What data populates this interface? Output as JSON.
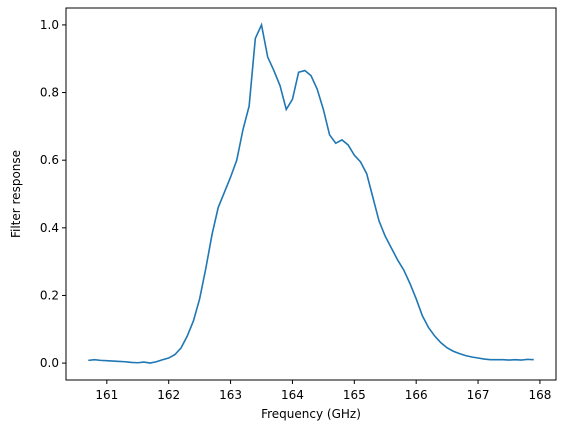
{
  "chart_data": {
    "type": "line",
    "xlabel": "Frequency (GHz)",
    "ylabel": "Filter response",
    "x": [
      160.7,
      160.8,
      160.9,
      161.0,
      161.1,
      161.2,
      161.3,
      161.4,
      161.5,
      161.6,
      161.7,
      161.8,
      161.9,
      162.0,
      162.1,
      162.2,
      162.3,
      162.4,
      162.5,
      162.6,
      162.7,
      162.8,
      162.9,
      163.0,
      163.1,
      163.2,
      163.3,
      163.4,
      163.5,
      163.6,
      163.7,
      163.8,
      163.9,
      164.0,
      164.1,
      164.2,
      164.3,
      164.4,
      164.5,
      164.6,
      164.7,
      164.8,
      164.9,
      165.0,
      165.1,
      165.2,
      165.3,
      165.4,
      165.5,
      165.6,
      165.7,
      165.8,
      165.9,
      166.0,
      166.1,
      166.2,
      166.3,
      166.4,
      166.5,
      166.6,
      166.7,
      166.8,
      166.9,
      167.0,
      167.1,
      167.2,
      167.3,
      167.4,
      167.5,
      167.6,
      167.7,
      167.8,
      167.9
    ],
    "series": [
      {
        "color": "#1f77b4",
        "values": [
          0.008,
          0.01,
          0.008,
          0.007,
          0.006,
          0.005,
          0.004,
          0.002,
          0.001,
          0.003,
          0.0,
          0.004,
          0.01,
          0.015,
          0.025,
          0.045,
          0.08,
          0.125,
          0.19,
          0.28,
          0.38,
          0.46,
          0.505,
          0.55,
          0.6,
          0.69,
          0.76,
          0.96,
          1.0,
          0.905,
          0.865,
          0.82,
          0.75,
          0.78,
          0.86,
          0.865,
          0.85,
          0.81,
          0.75,
          0.675,
          0.65,
          0.66,
          0.645,
          0.615,
          0.595,
          0.56,
          0.49,
          0.42,
          0.375,
          0.34,
          0.305,
          0.275,
          0.235,
          0.19,
          0.14,
          0.105,
          0.08,
          0.06,
          0.045,
          0.035,
          0.028,
          0.022,
          0.018,
          0.015,
          0.012,
          0.01,
          0.01,
          0.01,
          0.009,
          0.01,
          0.009,
          0.011,
          0.01
        ]
      }
    ],
    "xlim": [
      160.34,
      168.26
    ],
    "ylim": [
      -0.05,
      1.05
    ],
    "xticks": [
      161,
      162,
      163,
      164,
      165,
      166,
      167,
      168
    ],
    "yticks": [
      {
        "value": 0,
        "label": "0.0"
      },
      {
        "value": 0.2,
        "label": "0.2"
      },
      {
        "value": 0.4,
        "label": "0.4"
      },
      {
        "value": 0.6,
        "label": "0.6"
      },
      {
        "value": 0.8,
        "label": "0.8"
      },
      {
        "value": 1,
        "label": "1.0"
      }
    ]
  }
}
